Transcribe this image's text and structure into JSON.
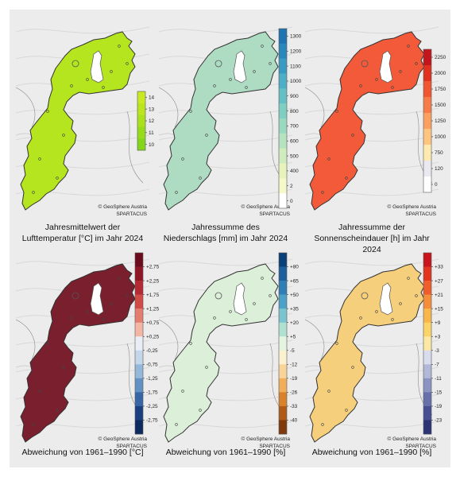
{
  "copyright": "© GeoSphere Austria",
  "source": "SPARTACUS",
  "panels": [
    {
      "caption_lines": [
        "Jahresmittelwert der",
        "Lufttemperatur [°C] im Jahr 2024"
      ],
      "fill": "#b4e51e",
      "colorbar": {
        "ticks": [
          "14",
          "13",
          "12",
          "11",
          "10"
        ],
        "colors": [
          "#c8ea22",
          "#bbe61f",
          "#a9e11c",
          "#96dc1b",
          "#84d61a"
        ]
      }
    },
    {
      "caption_lines": [
        "Jahressumme des",
        "Niederschlags [mm] im Jahr 2024"
      ],
      "fill": "#aedcc2",
      "colorbar": {
        "ticks": [
          "1300",
          "1200",
          "1100",
          "1000",
          "900",
          "800",
          "700",
          "600",
          "500",
          "400",
          "2",
          "0"
        ],
        "colors": [
          "#1f73b0",
          "#2a87bb",
          "#3a9bc2",
          "#4eaec5",
          "#66bfc4",
          "#80cdc1",
          "#9bd8c0",
          "#b6e2bf",
          "#d0ebbd",
          "#e7f3bb",
          "#f5f9c9",
          "#ffffff"
        ]
      }
    },
    {
      "caption_lines": [
        "Jahressumme der",
        "Sonnenscheindauer [h] im Jahr 2024"
      ],
      "fill": "#f25a3a",
      "colorbar": {
        "ticks": [
          "2250",
          "2000",
          "1750",
          "1500",
          "1250",
          "1000",
          "750",
          "120",
          "0"
        ],
        "colors": [
          "#c3161c",
          "#e0301f",
          "#f15532",
          "#f77b48",
          "#fba05f",
          "#fdc57f",
          "#feeab0",
          "#e9e9ef",
          "#ffffff"
        ]
      }
    },
    {
      "caption_lines": [
        "Abweichung von 1961–1990 [°C]"
      ],
      "fill": "#7a1f2e",
      "colorbar": {
        "ticks": [
          "+2,75",
          "+2,25",
          "+1,75",
          "+1,25",
          "+0,75",
          "+0,25",
          "-0,25",
          "-0,75",
          "-1,25",
          "-1,75",
          "-2,25",
          "-2,75"
        ],
        "colors": [
          "#6a0c1c",
          "#8e1625",
          "#b52932",
          "#d14a46",
          "#e57d6f",
          "#f3b5a4",
          "#e9eef5",
          "#c4d7ea",
          "#94b8d9",
          "#6192c3",
          "#3766a6",
          "#1a3f80",
          "#0c2a5e"
        ]
      }
    },
    {
      "caption_lines": [
        "Abweichung von 1961–1990 [%]"
      ],
      "fill": "#dcefd8",
      "colorbar": {
        "ticks": [
          "+80",
          "+65",
          "+50",
          "+35",
          "+20",
          "+5",
          "-5",
          "-12",
          "-19",
          "-26",
          "-33",
          "-40"
        ],
        "colors": [
          "#0b3f78",
          "#1d5f9c",
          "#2f7fb6",
          "#4da0c8",
          "#7bc3cf",
          "#b0e0d0",
          "#e4f4df",
          "#fbf0cf",
          "#f9d49a",
          "#f0ae5a",
          "#d9822c",
          "#b05a18",
          "#7e3a0d"
        ]
      }
    },
    {
      "caption_lines": [
        "Abweichung von 1961–1990 [%]"
      ],
      "fill": "#f6cf7c",
      "colorbar": {
        "ticks": [
          "+33",
          "+27",
          "+21",
          "+15",
          "+9",
          "+3",
          "-3",
          "-7",
          "-11",
          "-15",
          "-19",
          "-23"
        ],
        "colors": [
          "#c9131d",
          "#e2341f",
          "#f15d2a",
          "#f68d3a",
          "#f9b64b",
          "#fbd469",
          "#fbe8a4",
          "#d9dcec",
          "#b2b8d8",
          "#8b93c2",
          "#6670ab",
          "#464f93",
          "#2c3477"
        ]
      }
    }
  ]
}
